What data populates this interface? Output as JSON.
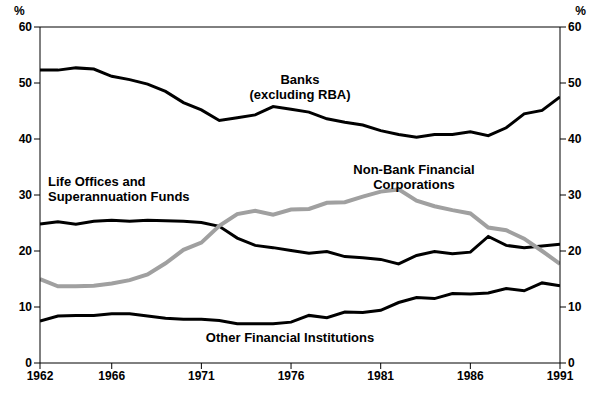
{
  "chart_data": {
    "type": "line",
    "y_label": "%",
    "x": [
      1962,
      1963,
      1964,
      1965,
      1966,
      1967,
      1968,
      1969,
      1970,
      1971,
      1972,
      1973,
      1974,
      1975,
      1976,
      1977,
      1978,
      1979,
      1980,
      1981,
      1982,
      1983,
      1984,
      1985,
      1986,
      1987,
      1988,
      1989,
      1990,
      1991
    ],
    "xlim": [
      1962,
      1991
    ],
    "xticks": [
      1962,
      1966,
      1971,
      1976,
      1981,
      1986,
      1991
    ],
    "ylim": [
      0,
      60
    ],
    "yticks": [
      0,
      10,
      20,
      30,
      40,
      50,
      60
    ],
    "grid": false,
    "annotations": [
      [
        "Banks",
        "(excluding RBA)"
      ],
      [
        "Life Offices and",
        "Superannuation Funds"
      ],
      [
        "Non-Bank Financial",
        "Corporations"
      ],
      [
        "Other Financial Institutions"
      ]
    ],
    "series": [
      {
        "name": "Banks (excluding RBA)",
        "color": "#000000",
        "values": [
          52.3,
          52.3,
          52.7,
          52.5,
          51.2,
          50.6,
          49.8,
          48.5,
          46.5,
          45.2,
          43.3,
          43.8,
          44.3,
          45.8,
          45.3,
          44.8,
          43.6,
          43.0,
          42.5,
          41.5,
          40.8,
          40.3,
          40.8,
          40.8,
          41.3,
          40.6,
          42.0,
          44.5,
          45.1,
          47.5
        ]
      },
      {
        "name": "Life Offices and Superannuation Funds",
        "color": "#000000",
        "values": [
          24.8,
          25.2,
          24.8,
          25.3,
          25.5,
          25.3,
          25.5,
          25.4,
          25.3,
          25.1,
          24.4,
          22.3,
          21.0,
          20.6,
          20.1,
          19.6,
          19.9,
          19.0,
          18.8,
          18.5,
          17.7,
          19.2,
          19.9,
          19.5,
          19.8,
          22.6,
          21.0,
          20.6,
          20.9,
          21.2
        ]
      },
      {
        "name": "Non-Bank Financial Corporations",
        "color": "#a0a0a0",
        "values": [
          15.0,
          13.7,
          13.7,
          13.8,
          14.2,
          14.8,
          15.8,
          17.8,
          20.2,
          21.5,
          24.5,
          26.6,
          27.2,
          26.5,
          27.4,
          27.5,
          28.6,
          28.7,
          29.7,
          30.6,
          31.0,
          29.0,
          28.0,
          27.3,
          26.7,
          24.2,
          23.7,
          22.2,
          20.0,
          17.7
        ]
      },
      {
        "name": "Other Financial Institutions",
        "color": "#000000",
        "values": [
          7.5,
          8.4,
          8.5,
          8.5,
          8.8,
          8.8,
          8.4,
          8.0,
          7.8,
          7.8,
          7.6,
          7.0,
          7.0,
          7.0,
          7.3,
          8.5,
          8.1,
          9.1,
          9.0,
          9.4,
          10.8,
          11.7,
          11.5,
          12.4,
          12.3,
          12.5,
          13.3,
          12.9,
          14.3,
          13.8
        ]
      }
    ]
  }
}
